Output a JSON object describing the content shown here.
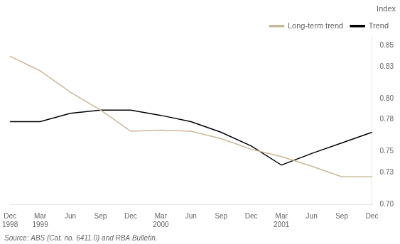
{
  "chart_data": {
    "type": "line",
    "ylabel": "Index",
    "source": "Source: ABS (Cat. no. 6411.0) and RBA Bulletin.",
    "categories": [
      "Dec\n1998",
      "Mar\n1999",
      "Jun\n",
      "Sep\n",
      "Dec\n",
      "Mar\n2000",
      "Jun\n",
      "Sep\n",
      "Dec\n",
      "Mar\n2001",
      "Jun\n",
      "Sep\n",
      "Dec\n"
    ],
    "series": [
      {
        "name": "Long-term trend",
        "color": "#c8b89a",
        "values": [
          0.84,
          0.826,
          0.806,
          0.789,
          0.769,
          0.77,
          0.769,
          0.762,
          0.752,
          0.745,
          0.736,
          0.726,
          0.726
        ]
      },
      {
        "name": "Trend",
        "color": "#000000",
        "values": [
          0.778,
          0.778,
          0.786,
          0.789,
          0.789,
          0.784,
          0.778,
          0.768,
          0.755,
          0.737,
          0.748,
          0.758,
          0.768
        ]
      }
    ],
    "ylim": [
      0.7,
      0.858
    ],
    "yticks": [
      {
        "value": 0.7,
        "label": "0.70"
      },
      0.73,
      0.75,
      0.78,
      {
        "value": 0.8,
        "label": "0.80"
      },
      0.83,
      0.85
    ],
    "grid": false,
    "legend": "upper right"
  }
}
